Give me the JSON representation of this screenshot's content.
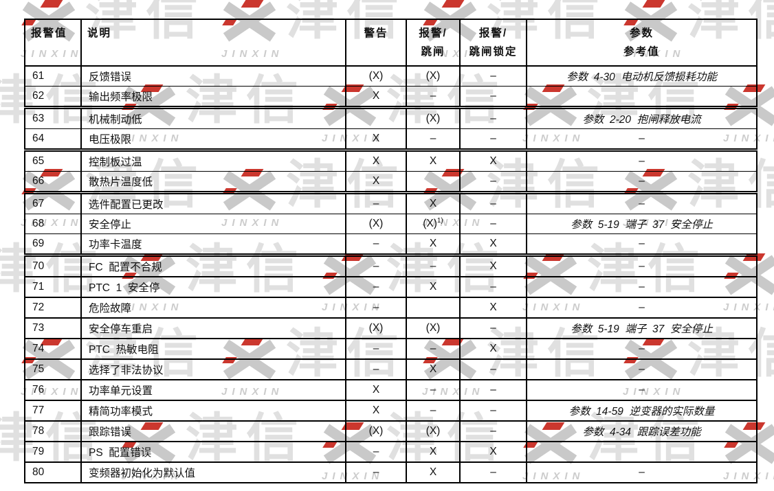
{
  "page": {
    "background": "#ffffff",
    "text_color": "#111111",
    "border_color": "#000000"
  },
  "watermark": {
    "logo_text": "津信",
    "latin_text": "JINXIN",
    "logo_icon": "jinxin-x-logo",
    "gray": "#c9c9c9",
    "light_gray": "#e0e0e0",
    "red": "#cb372e"
  },
  "table": {
    "headers": [
      {
        "line1": "报警值",
        "line2": ""
      },
      {
        "line1": "说明",
        "line2": ""
      },
      {
        "line1": "警告",
        "line2": ""
      },
      {
        "line1": "报警/",
        "line2": "跳闸"
      },
      {
        "line1": "报警/",
        "line2": "跳闸锁定"
      },
      {
        "line1": "参数",
        "line2": "参考值"
      }
    ],
    "rows": [
      {
        "code": "61",
        "desc": "反馈错误",
        "warning": "(X)",
        "alarm_trip": "(X)",
        "trip_lock": "–",
        "param": "参数  4-30  电动机反馈损耗功能",
        "param_italic": true,
        "sep": "thin"
      },
      {
        "code": "62",
        "desc": "输出频率极限",
        "warning": "X",
        "alarm_trip": "–",
        "trip_lock": "–",
        "param": "",
        "param_italic": false,
        "sep": "double"
      },
      {
        "code": "63",
        "desc": "机械制动低",
        "warning": "",
        "alarm_trip": "(X)",
        "trip_lock": "–",
        "param": "参数  2-20  抱闸释放电流",
        "param_italic": true,
        "sep": "thin"
      },
      {
        "code": "64",
        "desc": "电压极限",
        "warning": "X",
        "alarm_trip": "–",
        "trip_lock": "–",
        "param": "–",
        "param_italic": false,
        "sep": "double"
      },
      {
        "code": "65",
        "desc": "控制板过温",
        "warning": "X",
        "alarm_trip": "X",
        "trip_lock": "X",
        "param": "–",
        "param_italic": false,
        "sep": "thin"
      },
      {
        "code": "66",
        "desc": "散热片温度低",
        "warning": "X",
        "alarm_trip": "",
        "trip_lock": "–",
        "param": "–",
        "param_italic": false,
        "sep": "double"
      },
      {
        "code": "67",
        "desc": "选件配置已更改",
        "warning": "–",
        "alarm_trip": "X",
        "trip_lock": "–",
        "param": "–",
        "param_italic": false,
        "sep": "thin"
      },
      {
        "code": "68",
        "desc": "安全停止",
        "warning": "(X)",
        "alarm_trip": "(X)",
        "alarm_trip_sup": "1)",
        "trip_lock": "–",
        "param": "参数  5-19  端子  37  安全停止",
        "param_italic": true,
        "sep": "thin"
      },
      {
        "code": "69",
        "desc": "功率卡温度",
        "warning": "–",
        "alarm_trip": "X",
        "trip_lock": "X",
        "param": "–",
        "param_italic": false,
        "sep": "double"
      },
      {
        "code": "70",
        "desc": "FC  配置不合规",
        "warning": "–",
        "alarm_trip": "–",
        "trip_lock": "X",
        "param": "–",
        "param_italic": false,
        "sep": "normal"
      },
      {
        "code": "71",
        "desc": "PTC  1  安全停",
        "warning": "–",
        "alarm_trip": "X",
        "trip_lock": "–",
        "param": "–",
        "param_italic": false,
        "sep": "normal"
      },
      {
        "code": "72",
        "desc": "危险故障",
        "warning": "–",
        "alarm_trip": "",
        "trip_lock": "X",
        "param": "–",
        "param_italic": false,
        "sep": "normal"
      },
      {
        "code": "73",
        "desc": "安全停车重启",
        "warning": "(X)",
        "alarm_trip": "(X)",
        "trip_lock": "–",
        "param": "参数  5-19  端子  37  安全停止",
        "param_italic": true,
        "sep": "normal"
      },
      {
        "code": "74",
        "desc": "PTC  热敏电阻",
        "warning": "–",
        "alarm_trip": "–",
        "trip_lock": "X",
        "param": "–",
        "param_italic": false,
        "sep": "normal"
      },
      {
        "code": "75",
        "desc": "选择了非法协议",
        "warning": "–",
        "alarm_trip": "X",
        "trip_lock": "–",
        "param": "–",
        "param_italic": false,
        "sep": "normal"
      },
      {
        "code": "76",
        "desc": "功率单元设置",
        "warning": "X",
        "alarm_trip": "–",
        "trip_lock": "–",
        "param": "–",
        "param_italic": false,
        "sep": "normal"
      },
      {
        "code": "77",
        "desc": "精简功率模式",
        "warning": "X",
        "alarm_trip": "–",
        "trip_lock": "–",
        "param": "参数  14-59  逆变器的实际数量",
        "param_italic": true,
        "sep": "normal"
      },
      {
        "code": "78",
        "desc": "跟踪错误",
        "warning": "(X)",
        "alarm_trip": "(X)",
        "trip_lock": "–",
        "param": "参数  4-34  跟踪误差功能",
        "param_italic": true,
        "sep": "normal"
      },
      {
        "code": "79",
        "desc": "PS  配置错误",
        "warning": "–",
        "alarm_trip": "X",
        "trip_lock": "X",
        "param": "",
        "param_italic": false,
        "sep": "normal"
      },
      {
        "code": "80",
        "desc": "变频器初始化为默认值",
        "warning": "–",
        "alarm_trip": "X",
        "trip_lock": "–",
        "param": "–",
        "param_italic": false,
        "sep": "normal"
      }
    ]
  }
}
